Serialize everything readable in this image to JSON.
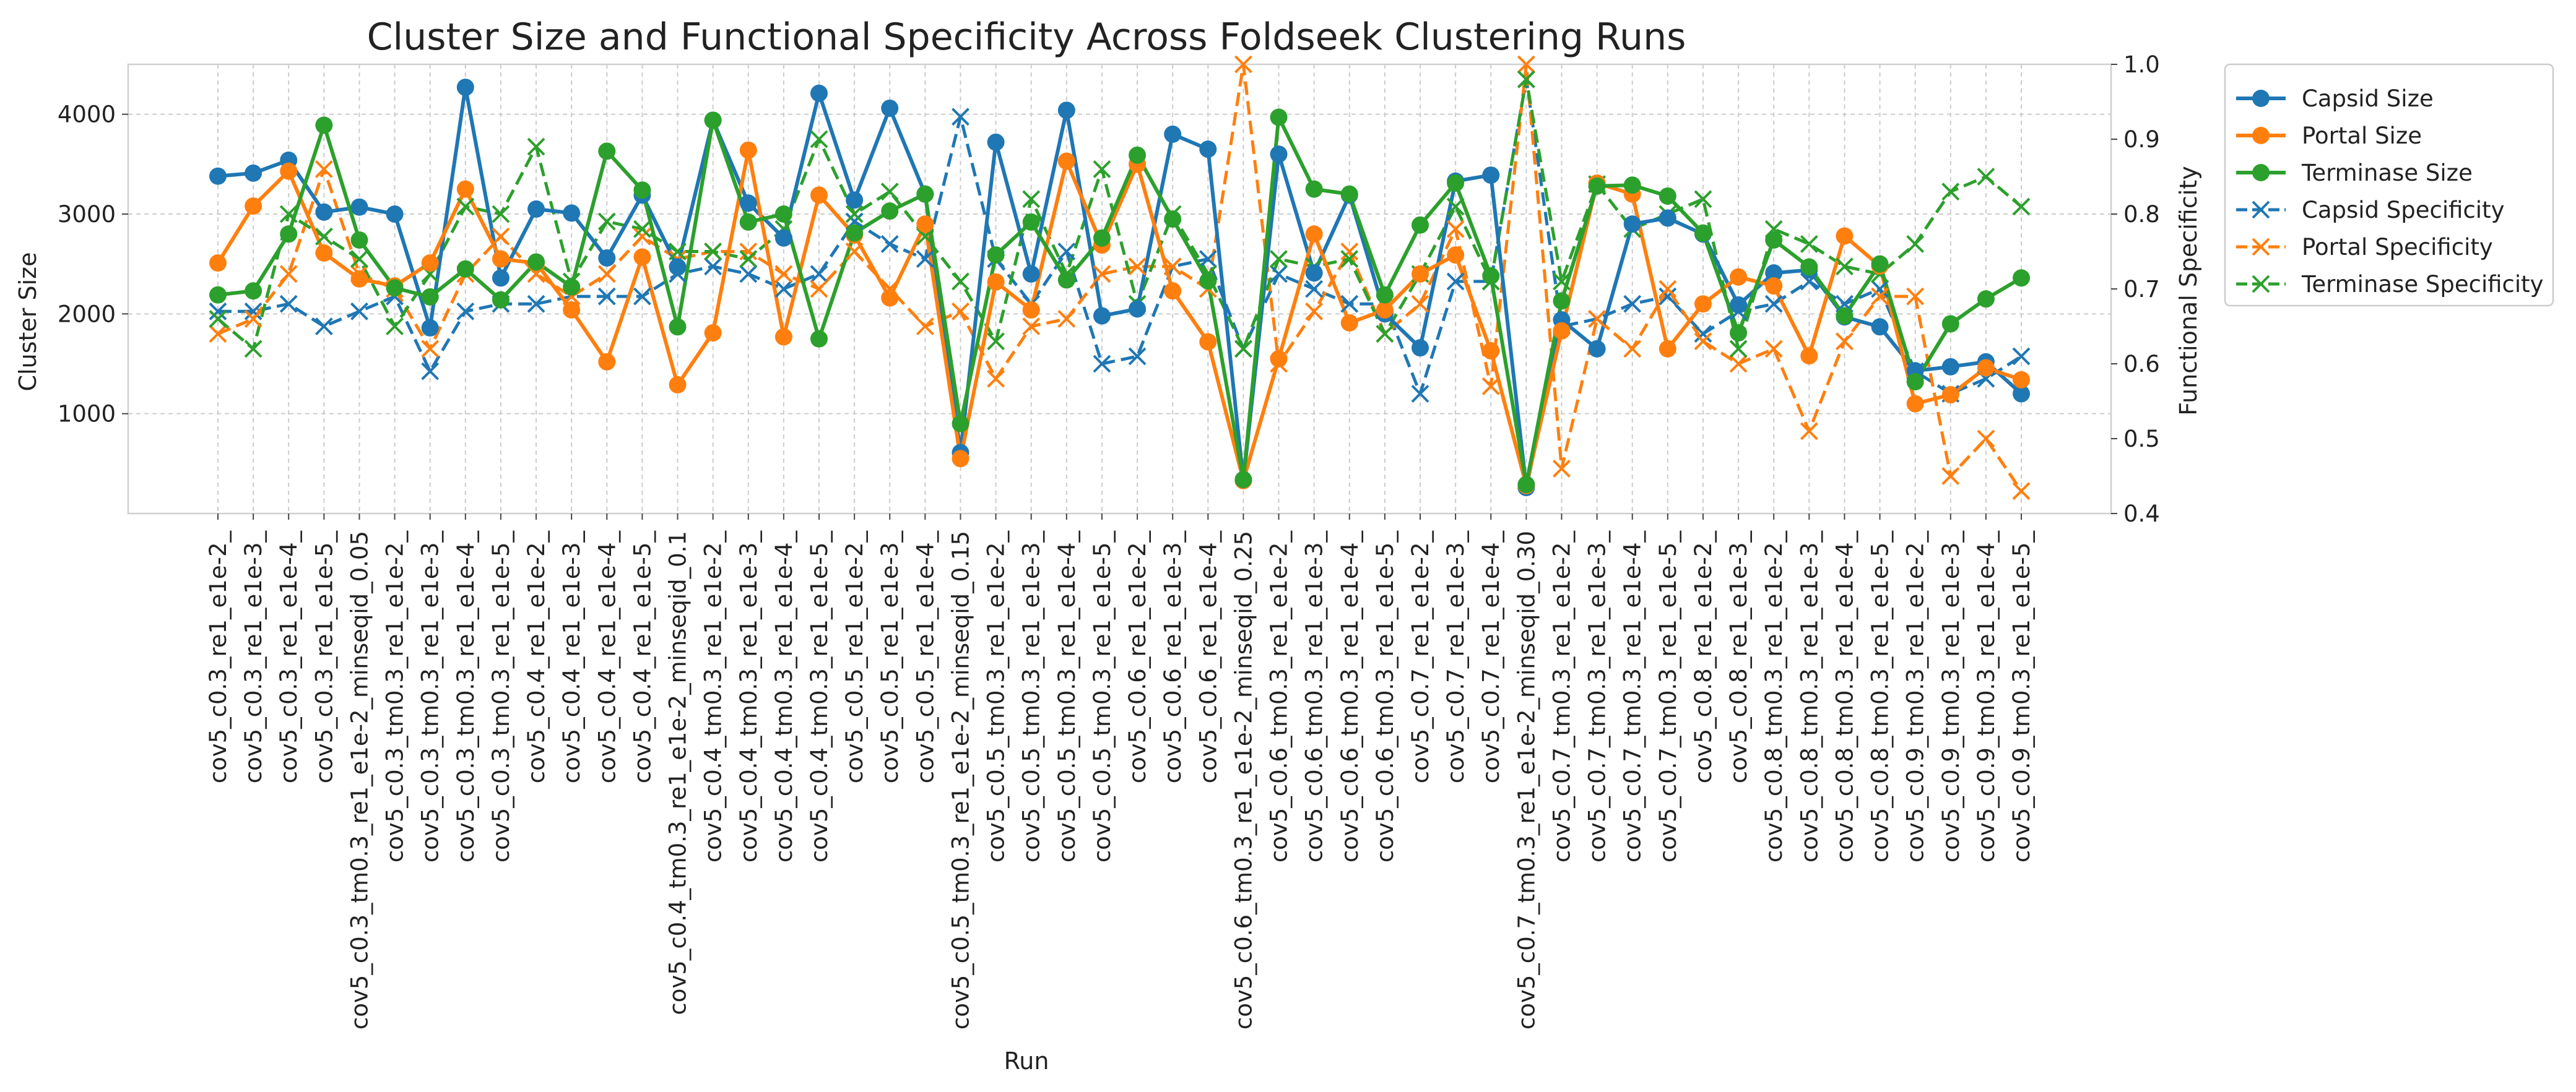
{
  "chart_data": {
    "type": "line",
    "title": "Cluster Size and Functional Specificity Across Foldseek Clustering Runs",
    "xlabel": "Run",
    "ylabel": "Cluster Size",
    "y2label": "Functional Specificity",
    "ylim": [
      0,
      4500
    ],
    "y2lim": [
      0.4,
      1.0
    ],
    "yticks": [
      1000,
      2000,
      3000,
      4000
    ],
    "y2ticks": [
      0.4,
      0.5,
      0.6,
      0.7,
      0.8,
      0.9,
      1.0
    ],
    "grid": true,
    "legend_position": "outside-top-right",
    "categories": [
      "cov5_c0.3_re1_e1e-2_",
      "cov5_c0.3_re1_e1e-3_",
      "cov5_c0.3_re1_e1e-4_",
      "cov5_c0.3_re1_e1e-5_",
      "cov5_c0.3_tm0.3_re1_e1e-2_minseqid_0.05",
      "cov5_c0.3_tm0.3_re1_e1e-2_",
      "cov5_c0.3_tm0.3_re1_e1e-3_",
      "cov5_c0.3_tm0.3_re1_e1e-4_",
      "cov5_c0.3_tm0.3_re1_e1e-5_",
      "cov5_c0.4_re1_e1e-2_",
      "cov5_c0.4_re1_e1e-3_",
      "cov5_c0.4_re1_e1e-4_",
      "cov5_c0.4_re1_e1e-5_",
      "cov5_c0.4_tm0.3_re1_e1e-2_minseqid_0.1",
      "cov5_c0.4_tm0.3_re1_e1e-2_",
      "cov5_c0.4_tm0.3_re1_e1e-3_",
      "cov5_c0.4_tm0.3_re1_e1e-4_",
      "cov5_c0.4_tm0.3_re1_e1e-5_",
      "cov5_c0.5_re1_e1e-2_",
      "cov5_c0.5_re1_e1e-3_",
      "cov5_c0.5_re1_e1e-4_",
      "cov5_c0.5_tm0.3_re1_e1e-2_minseqid_0.15",
      "cov5_c0.5_tm0.3_re1_e1e-2_",
      "cov5_c0.5_tm0.3_re1_e1e-3_",
      "cov5_c0.5_tm0.3_re1_e1e-4_",
      "cov5_c0.5_tm0.3_re1_e1e-5_",
      "cov5_c0.6_re1_e1e-2_",
      "cov5_c0.6_re1_e1e-3_",
      "cov5_c0.6_re1_e1e-4_",
      "cov5_c0.6_tm0.3_re1_e1e-2_minseqid_0.25",
      "cov5_c0.6_tm0.3_re1_e1e-2_",
      "cov5_c0.6_tm0.3_re1_e1e-3_",
      "cov5_c0.6_tm0.3_re1_e1e-4_",
      "cov5_c0.6_tm0.3_re1_e1e-5_",
      "cov5_c0.7_re1_e1e-2_",
      "cov5_c0.7_re1_e1e-3_",
      "cov5_c0.7_re1_e1e-4_",
      "cov5_c0.7_tm0.3_re1_e1e-2_minseqid_0.30",
      "cov5_c0.7_tm0.3_re1_e1e-2_",
      "cov5_c0.7_tm0.3_re1_e1e-3_",
      "cov5_c0.7_tm0.3_re1_e1e-4_",
      "cov5_c0.7_tm0.3_re1_e1e-5_",
      "cov5_c0.8_re1_e1e-2_",
      "cov5_c0.8_re1_e1e-3_",
      "cov5_c0.8_tm0.3_re1_e1e-2_",
      "cov5_c0.8_tm0.3_re1_e1e-3_",
      "cov5_c0.8_tm0.3_re1_e1e-4_",
      "cov5_c0.8_tm0.3_re1_e1e-5_",
      "cov5_c0.9_tm0.3_re1_e1e-2_",
      "cov5_c0.9_tm0.3_re1_e1e-3_",
      "cov5_c0.9_tm0.3_re1_e1e-4_",
      "cov5_c0.9_tm0.3_re1_e1e-5_"
    ],
    "series": [
      {
        "name": "Capsid Size",
        "axis": "left",
        "style": "solid",
        "marker": "circle",
        "color": "#1f77b4",
        "values": [
          3380,
          3410,
          3540,
          3020,
          3070,
          3000,
          1860,
          4270,
          2360,
          3050,
          3010,
          2560,
          3190,
          2470,
          3940,
          3110,
          2760,
          4210,
          3140,
          4060,
          3200,
          610,
          3720,
          2400,
          4040,
          1980,
          2050,
          3800,
          3650,
          330,
          3600,
          2410,
          3190,
          2000,
          1660,
          3330,
          3390,
          260,
          1940,
          1650,
          2900,
          2960,
          2800,
          2090,
          2410,
          2440,
          1970,
          1870,
          1430,
          1470,
          1520,
          1200
        ]
      },
      {
        "name": "Portal Size",
        "axis": "left",
        "style": "solid",
        "marker": "circle",
        "color": "#ff7f0e",
        "values": [
          2510,
          3080,
          3430,
          2610,
          2350,
          2280,
          2510,
          3250,
          2550,
          2510,
          2040,
          1520,
          2570,
          1290,
          1810,
          3640,
          1770,
          3190,
          2790,
          2160,
          2900,
          550,
          2320,
          2040,
          3530,
          2690,
          3500,
          2230,
          1720,
          330,
          1550,
          2800,
          1910,
          2040,
          2400,
          2590,
          1630,
          280,
          1830,
          3310,
          3200,
          1650,
          2100,
          2370,
          2280,
          1580,
          2780,
          2480,
          1100,
          1190,
          1460,
          1340
        ]
      },
      {
        "name": "Terminase Size",
        "axis": "left",
        "style": "solid",
        "marker": "circle",
        "color": "#2ca02c",
        "values": [
          2190,
          2230,
          2800,
          3890,
          2740,
          2260,
          2170,
          2450,
          2140,
          2520,
          2270,
          3630,
          3240,
          1870,
          3940,
          2920,
          3000,
          1750,
          2810,
          3030,
          3200,
          900,
          2590,
          2920,
          2340,
          2760,
          3590,
          2950,
          2330,
          340,
          3970,
          3250,
          3200,
          2190,
          2890,
          3310,
          2380,
          290,
          2130,
          3280,
          3290,
          3180,
          2810,
          1810,
          2740,
          2470,
          1980,
          2500,
          1320,
          1900,
          2150,
          2360
        ]
      },
      {
        "name": "Capsid Specificity",
        "axis": "right",
        "style": "dashed",
        "marker": "x",
        "color": "#1f77b4",
        "values": [
          0.67,
          0.67,
          0.68,
          0.65,
          0.67,
          0.69,
          0.59,
          0.67,
          0.68,
          0.68,
          0.69,
          0.69,
          0.69,
          0.72,
          0.73,
          0.72,
          0.7,
          0.72,
          0.79,
          0.76,
          0.74,
          0.93,
          0.74,
          0.68,
          0.75,
          0.6,
          0.61,
          0.73,
          0.74,
          0.62,
          0.72,
          0.7,
          0.68,
          0.68,
          0.56,
          0.71,
          0.71,
          0.98,
          0.65,
          0.66,
          0.68,
          0.69,
          0.64,
          0.67,
          0.68,
          0.71,
          0.68,
          0.7,
          0.59,
          0.56,
          0.58,
          0.61
        ]
      },
      {
        "name": "Portal Specificity",
        "axis": "right",
        "style": "dashed",
        "marker": "x",
        "color": "#ff7f0e",
        "values": [
          0.64,
          0.66,
          0.72,
          0.86,
          0.72,
          0.7,
          0.62,
          0.72,
          0.77,
          0.72,
          0.69,
          0.72,
          0.77,
          0.74,
          0.75,
          0.75,
          0.72,
          0.7,
          0.75,
          0.7,
          0.65,
          0.67,
          0.58,
          0.65,
          0.66,
          0.72,
          0.73,
          0.73,
          0.7,
          1.0,
          0.6,
          0.67,
          0.75,
          0.64,
          0.68,
          0.78,
          0.57,
          1.0,
          0.46,
          0.66,
          0.62,
          0.7,
          0.63,
          0.6,
          0.62,
          0.51,
          0.63,
          0.69,
          0.69,
          0.45,
          0.5,
          0.43
        ]
      },
      {
        "name": "Terminase Specificity",
        "axis": "right",
        "style": "dashed",
        "marker": "x",
        "color": "#2ca02c",
        "values": [
          0.66,
          0.62,
          0.8,
          0.77,
          0.74,
          0.65,
          0.72,
          0.81,
          0.8,
          0.89,
          0.71,
          0.79,
          0.78,
          0.75,
          0.75,
          0.74,
          0.78,
          0.9,
          0.8,
          0.83,
          0.77,
          0.71,
          0.63,
          0.82,
          0.72,
          0.86,
          0.68,
          0.8,
          0.72,
          0.62,
          0.74,
          0.73,
          0.74,
          0.64,
          0.72,
          0.81,
          0.71,
          0.98,
          0.71,
          0.84,
          0.78,
          0.8,
          0.82,
          0.62,
          0.78,
          0.76,
          0.73,
          0.72,
          0.76,
          0.83,
          0.85,
          0.81
        ]
      }
    ]
  }
}
